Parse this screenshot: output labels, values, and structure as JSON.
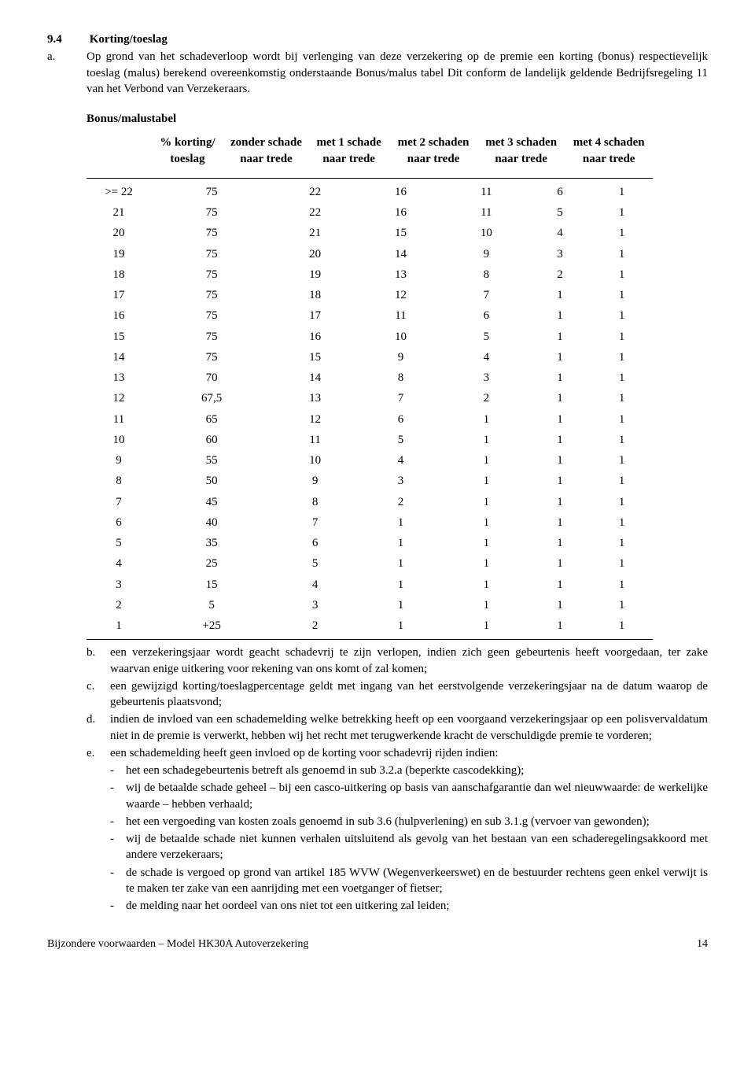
{
  "section": {
    "number": "9.4",
    "title": "Korting/toeslag",
    "para_a_letter": "a.",
    "para_a_text": "Op grond van het schadeverloop wordt bij verlenging van deze verzekering op de premie een korting (bonus) respectievelijk toeslag (malus) berekend overeenkomstig onderstaande Bonus/malus tabel Dit conform de landelijk geldende Bedrijfsregeling 11 van het Verbond van Verzekeraars."
  },
  "bonusmalus": {
    "title": "Bonus/malustabel",
    "headers": {
      "c0": "",
      "c1": "% korting/ toeslag",
      "c2": "zonder schade naar trede",
      "c3": "met 1 schade naar trede",
      "c4": "met 2 schaden naar trede",
      "c5": "met 3 schaden naar trede",
      "c6": "met 4 schaden naar trede"
    },
    "rows": [
      [
        ">= 22",
        "75",
        "22",
        "16",
        "11",
        "6",
        "1"
      ],
      [
        "21",
        "75",
        "22",
        "16",
        "11",
        "5",
        "1"
      ],
      [
        "20",
        "75",
        "21",
        "15",
        "10",
        "4",
        "1"
      ],
      [
        "19",
        "75",
        "20",
        "14",
        "9",
        "3",
        "1"
      ],
      [
        "18",
        "75",
        "19",
        "13",
        "8",
        "2",
        "1"
      ],
      [
        "17",
        "75",
        "18",
        "12",
        "7",
        "1",
        "1"
      ],
      [
        "16",
        "75",
        "17",
        "11",
        "6",
        "1",
        "1"
      ],
      [
        "15",
        "75",
        "16",
        "10",
        "5",
        "1",
        "1"
      ],
      [
        "14",
        "75",
        "15",
        "9",
        "4",
        "1",
        "1"
      ],
      [
        "13",
        "70",
        "14",
        "8",
        "3",
        "1",
        "1"
      ],
      [
        "12",
        "67,5",
        "13",
        "7",
        "2",
        "1",
        "1"
      ],
      [
        "11",
        "65",
        "12",
        "6",
        "1",
        "1",
        "1"
      ],
      [
        "10",
        "60",
        "11",
        "5",
        "1",
        "1",
        "1"
      ],
      [
        "9",
        "55",
        "10",
        "4",
        "1",
        "1",
        "1"
      ],
      [
        "8",
        "50",
        "9",
        "3",
        "1",
        "1",
        "1"
      ],
      [
        "7",
        "45",
        "8",
        "2",
        "1",
        "1",
        "1"
      ],
      [
        "6",
        "40",
        "7",
        "1",
        "1",
        "1",
        "1"
      ],
      [
        "5",
        "35",
        "6",
        "1",
        "1",
        "1",
        "1"
      ],
      [
        "4",
        "25",
        "5",
        "1",
        "1",
        "1",
        "1"
      ],
      [
        "3",
        "15",
        "4",
        "1",
        "1",
        "1",
        "1"
      ],
      [
        "2",
        "5",
        "3",
        "1",
        "1",
        "1",
        "1"
      ],
      [
        "1",
        "+25",
        "2",
        "1",
        "1",
        "1",
        "1"
      ]
    ]
  },
  "notes": {
    "b_letter": "b.",
    "b_text": "een verzekeringsjaar wordt geacht schadevrij te zijn verlopen, indien zich geen gebeurtenis heeft voorgedaan, ter zake waarvan enige uitkering voor rekening van ons komt of zal komen;",
    "c_letter": "c.",
    "c_text": "een gewijzigd korting/toeslagpercentage geldt met ingang van het eerstvolgende verzekeringsjaar na de datum waarop de gebeurtenis plaatsvond;",
    "d_letter": "d.",
    "d_text": "indien de invloed van een schademelding welke betrekking heeft op een voorgaand verzekeringsjaar op een polisvervaldatum niet in de premie is verwerkt, hebben wij het recht met terugwerkende kracht de verschuldigde premie te vorderen;",
    "e_letter": "e.",
    "e_text": "een schademelding heeft geen invloed op de korting voor schadevrij rijden indien:",
    "e_items": [
      "het een schadegebeurtenis betreft als genoemd in sub 3.2.a (beperkte cascodekking);",
      "wij de betaalde schade geheel – bij een casco-uitkering op basis van aanschafgarantie dan wel nieuwwaarde: de werkelijke waarde – hebben verhaald;",
      "het een vergoeding van kosten zoals genoemd in sub 3.6 (hulpverlening) en sub 3.1.g (vervoer van gewonden);",
      "wij de betaalde schade niet kunnen verhalen uitsluitend als gevolg van het bestaan van een schaderegelingsakkoord met andere verzekeraars;",
      "de schade is vergoed op grond van artikel 185 WVW (Wegenverkeerswet) en de bestuurder rechtens geen enkel verwijt is te maken ter zake van een aanrijding met een voetganger of fietser;",
      "de melding naar het oordeel van ons niet tot een uitkering zal leiden;"
    ]
  },
  "footer": {
    "text": "Bijzondere  voorwaarden – Model HK30A Autoverzekering",
    "page": "14"
  }
}
